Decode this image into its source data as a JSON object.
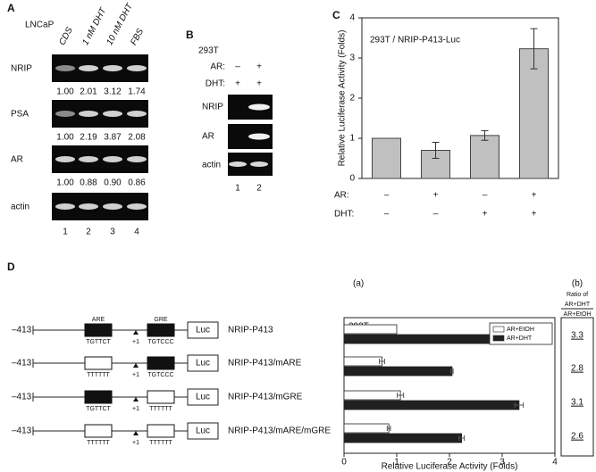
{
  "panel_a": {
    "label": "A",
    "cell_line": "LNCaP",
    "lanes_header": [
      "CDS",
      "1 nM DHT",
      "10 nM DHT",
      "FBS"
    ],
    "rows": [
      {
        "name": "NRIP",
        "ratios": [
          "1.00",
          "2.01",
          "3.12",
          "1.74"
        ]
      },
      {
        "name": "PSA",
        "ratios": [
          "1.00",
          "2.19",
          "3.87",
          "2.08"
        ]
      },
      {
        "name": "AR",
        "ratios": [
          "1.00",
          "0.88",
          "0.90",
          "0.86"
        ]
      },
      {
        "name": "actin"
      }
    ],
    "lane_numbers": [
      "1",
      "2",
      "3",
      "4"
    ]
  },
  "panel_b": {
    "label": "B",
    "cell_line": "293T",
    "conditions": [
      {
        "name": "AR:",
        "signs": [
          "–",
          "+"
        ]
      },
      {
        "name": "DHT:",
        "signs": [
          "+",
          "+"
        ]
      }
    ],
    "rows": [
      "NRIP",
      "AR",
      "actin"
    ],
    "lane_numbers": [
      "1",
      "2"
    ]
  },
  "chart_data": [
    {
      "panel": "C",
      "type": "bar",
      "title": "293T / NRIP-P413-Luc",
      "y_label": "Relative Luciferase Activity (Folds)",
      "categories": [
        null,
        null,
        null,
        null
      ],
      "values": [
        1,
        0.7,
        1.07,
        3.23
      ],
      "errors": [
        null,
        0.2,
        0.12,
        0.5
      ],
      "color": "#c0c0c0",
      "ylim": [
        0,
        4
      ],
      "yticks": [
        0,
        1,
        2,
        3,
        4
      ],
      "conditions": [
        {
          "name": "AR:",
          "signs": [
            "–",
            "+",
            "–",
            "+"
          ]
        },
        {
          "name": "DHT:",
          "signs": [
            "–",
            "–",
            "+",
            "+"
          ]
        }
      ]
    },
    {
      "panel": "(a)",
      "type": "hbar",
      "title": "293T",
      "x_label": "Relative Luciferase Activity (Folds)",
      "categories": [
        null,
        null,
        null,
        null
      ],
      "series": [
        {
          "name": "AR+EtOH",
          "color": "#ffffff",
          "values": [
            1,
            0.72,
            1.07,
            0.85
          ],
          "errors": [
            null,
            0.05,
            0.06,
            0.03
          ]
        },
        {
          "name": "AR+DHT",
          "color": "#202020",
          "values": [
            3.3,
            2.05,
            3.32,
            2.23
          ],
          "errors": [
            0.1,
            0.02,
            0.08,
            0.05
          ]
        }
      ],
      "xlim": [
        0,
        4
      ],
      "xticks": [
        0,
        1,
        2,
        3,
        4
      ],
      "legend": "upper right"
    }
  ],
  "panel_d": {
    "label": "D",
    "elements": {
      "are": "ARE",
      "gre": "GRE"
    },
    "constructs": [
      {
        "start": "–413",
        "are_seq": "TGTTCT",
        "are_mutant": false,
        "gre_seq": "TGTCCC",
        "gre_mutant": false,
        "tss": "+1",
        "reporter": "Luc",
        "name": "NRIP-P413"
      },
      {
        "start": "–413",
        "are_seq": "TTTTTT",
        "are_mutant": true,
        "gre_seq": "TGTCCC",
        "gre_mutant": false,
        "tss": "+1",
        "reporter": "Luc",
        "name": "NRIP-P413/mARE"
      },
      {
        "start": "–413",
        "are_seq": "TGTTCT",
        "are_mutant": false,
        "gre_seq": "TTTTTT",
        "gre_mutant": true,
        "tss": "+1",
        "reporter": "Luc",
        "name": "NRIP-P413/mGRE"
      },
      {
        "start": "–413",
        "are_seq": "TTTTTT",
        "are_mutant": true,
        "gre_seq": "TTTTTT",
        "gre_mutant": true,
        "tss": "+1",
        "reporter": "Luc",
        "name": "NRIP-P413/mARE/mGRE"
      }
    ],
    "ratio": {
      "label": "(b)",
      "header": "Ratio of",
      "numerator": "AR+DHT",
      "denominator": "AR+EtOH",
      "values": [
        "3.3",
        "2.8",
        "3.1",
        "2.6"
      ]
    }
  }
}
